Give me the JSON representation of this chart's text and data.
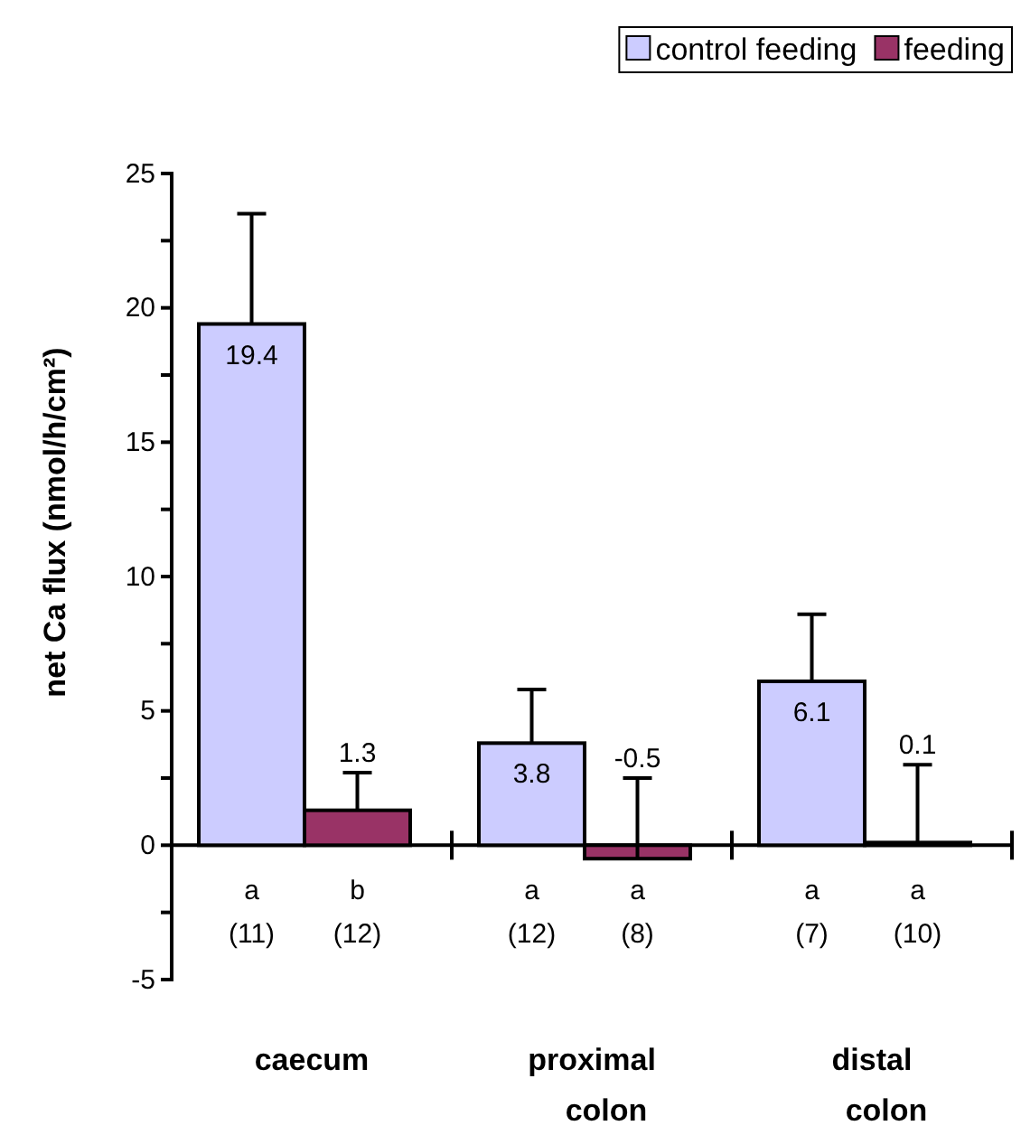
{
  "chart_data": {
    "type": "bar",
    "ylabel": "net Ca flux (nmol/h/cm²)",
    "categories": [
      "caecum",
      "proximal colon",
      "distal colon"
    ],
    "series": [
      {
        "name": "control feeding",
        "color": "#ccccff",
        "values": [
          19.4,
          3.8,
          6.1
        ],
        "errors": [
          [
            19.4,
            23.5
          ],
          [
            3.8,
            5.8
          ],
          [
            6.1,
            8.6
          ]
        ]
      },
      {
        "name": "feeding",
        "color": "#993366",
        "values": [
          1.3,
          -0.5,
          0.1
        ],
        "errors": [
          [
            1.3,
            2.7
          ],
          [
            -0.5,
            2.5
          ],
          [
            0.1,
            3.0
          ]
        ]
      }
    ],
    "ylim": [
      -5,
      25
    ],
    "yticks": [
      -5,
      {
        "value": -2.5,
        "label": null
      },
      0,
      {
        "value": 2.5,
        "label": null
      },
      5,
      {
        "value": 7.5,
        "label": null
      },
      10,
      {
        "value": 12.5,
        "label": null
      },
      15,
      {
        "value": 17.5,
        "label": null
      },
      20,
      {
        "value": 22.5,
        "label": null
      },
      25
    ],
    "data_labels": true,
    "legend": "top right",
    "annotations": [
      "a",
      "(11)",
      "b",
      "(12)",
      "a",
      "(12)",
      "a",
      "(8)",
      "a",
      "(7)",
      "a",
      "(10)"
    ]
  }
}
